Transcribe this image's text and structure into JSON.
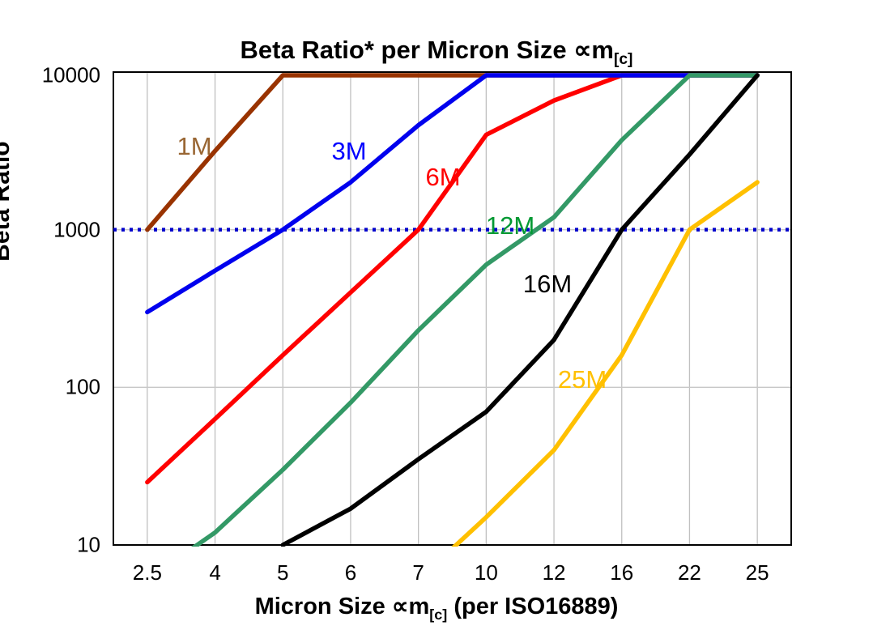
{
  "title": {
    "main": "Beta Ratio* per Micron Size ",
    "symbol": "∝m",
    "sub": "[c]"
  },
  "y_axis": {
    "label": "Beta Ratio",
    "ticks": [
      "10000",
      "1000",
      "100",
      "10"
    ]
  },
  "x_axis": {
    "label_pre": "Micron Size ",
    "symbol": "∝m",
    "sub": "[c]",
    "label_post": " (per ISO16889)",
    "ticks": [
      "2.5",
      "4",
      "5",
      "6",
      "7",
      "10",
      "12",
      "16",
      "22",
      "25"
    ]
  },
  "chart_data": {
    "type": "line",
    "title": "Beta Ratio* per Micron Size ∝m[c]",
    "xlabel": "Micron Size ∝m[c] (per ISO16889)",
    "ylabel": "Beta Ratio",
    "y_scale": "log",
    "ylim": [
      10,
      10000
    ],
    "grid": true,
    "legend_position": "inline-labels",
    "categories": [
      2.5,
      4,
      5,
      6,
      7,
      10,
      12,
      16,
      22,
      25
    ],
    "reference_line": {
      "y": 1000,
      "color": "#0000CC",
      "style": "dotted"
    },
    "series": [
      {
        "name": "6M",
        "color": "#FF0000",
        "label_color": "#FF0000",
        "values": [
          25,
          63,
          160,
          400,
          1000,
          4000,
          6600,
          10000,
          10000,
          10000
        ]
      },
      {
        "name": "1M",
        "color": "#993300",
        "label_color": "#996633",
        "values": [
          1000,
          3160,
          10000,
          10000,
          10000,
          10000,
          10000,
          10000,
          10000,
          10000
        ]
      },
      {
        "name": "3M",
        "color": "#0000EE",
        "label_color": "#0000FF",
        "values": [
          300,
          550,
          1000,
          2000,
          4600,
          10000,
          10000,
          10000,
          10000,
          10000
        ]
      },
      {
        "name": "12M",
        "color": "#339966",
        "label_color": "#009933",
        "values": [
          6,
          12,
          30,
          80,
          230,
          600,
          1200,
          3700,
          10000,
          10000
        ]
      },
      {
        "name": "16M",
        "color": "#000000",
        "label_color": "#000000",
        "values": [
          null,
          null,
          10,
          17,
          35,
          70,
          200,
          1000,
          3000,
          10000
        ]
      },
      {
        "name": "25M",
        "color": "#FFC000",
        "label_color": "#FFC000",
        "values": [
          null,
          null,
          null,
          null,
          6,
          15,
          40,
          160,
          1000,
          2000
        ]
      }
    ]
  }
}
